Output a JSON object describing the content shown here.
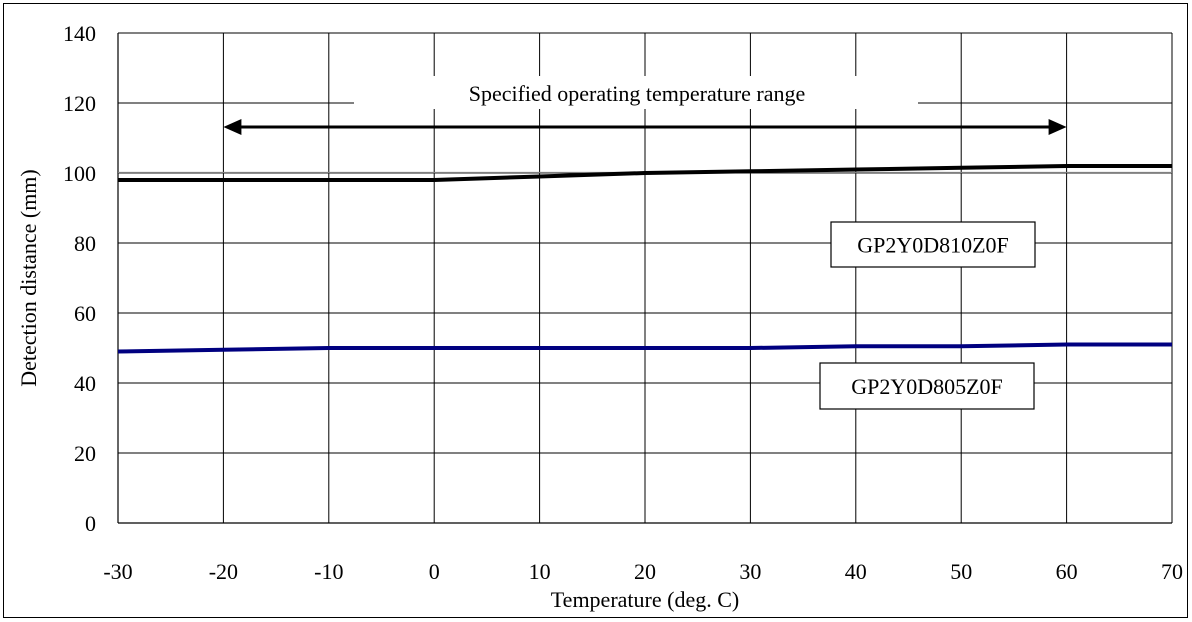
{
  "chart_data": {
    "type": "line",
    "title": "",
    "xlabel": "Temperature (deg. C)",
    "ylabel": "Detection distance (mm)",
    "xlim": [
      -30,
      70
    ],
    "ylim": [
      0,
      140
    ],
    "x_ticks": [
      "-30",
      "-20",
      "-10",
      "0",
      "10",
      "20",
      "30",
      "40",
      "50",
      "60",
      "70"
    ],
    "y_ticks": [
      "0",
      "20",
      "40",
      "60",
      "80",
      "100",
      "120",
      "140"
    ],
    "grid": true,
    "reference_line": 100,
    "series": [
      {
        "name": "GP2Y0D810Z0F",
        "color": "#000000",
        "points": [
          [
            -30,
            98
          ],
          [
            -20,
            98
          ],
          [
            -10,
            98
          ],
          [
            0,
            98
          ],
          [
            10,
            99
          ],
          [
            20,
            100
          ],
          [
            30,
            100.5
          ],
          [
            40,
            101
          ],
          [
            50,
            101.5
          ],
          [
            60,
            102
          ],
          [
            70,
            102
          ]
        ]
      },
      {
        "name": "GP2Y0D805Z0F",
        "color": "#000080",
        "points": [
          [
            -30,
            49
          ],
          [
            -20,
            49.5
          ],
          [
            -10,
            50
          ],
          [
            0,
            50
          ],
          [
            10,
            50
          ],
          [
            20,
            50
          ],
          [
            30,
            50
          ],
          [
            40,
            50.5
          ],
          [
            50,
            50.5
          ],
          [
            60,
            51
          ],
          [
            70,
            51
          ]
        ]
      }
    ],
    "annotations": {
      "range_label": "Specified operating temperature range",
      "range_from": -20,
      "range_to": 60,
      "range_y": 114
    }
  }
}
